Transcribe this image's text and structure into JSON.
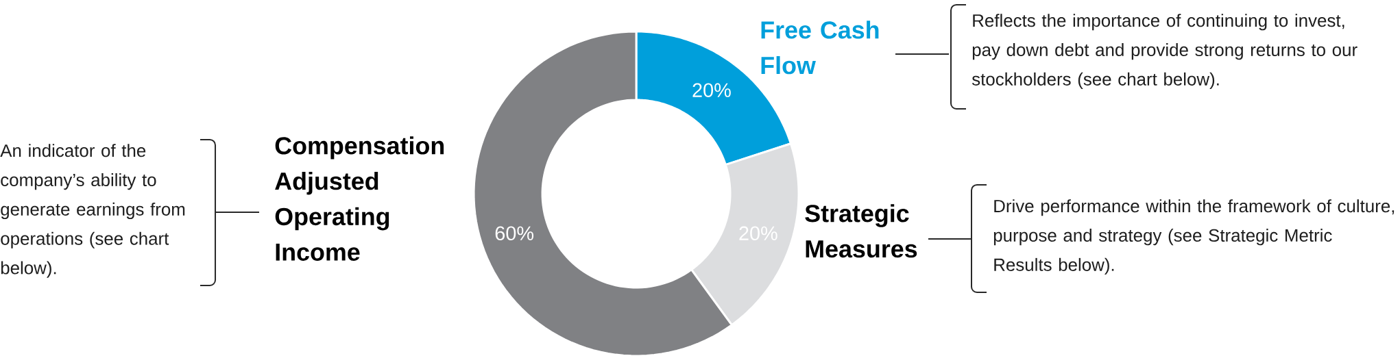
{
  "chart_data": {
    "type": "donut",
    "categories": [
      "Free Cash Flow",
      "Strategic Measures",
      "Compensation Adjusted Operating Income"
    ],
    "values": [
      20,
      20,
      60
    ],
    "colors": [
      "#009fdb",
      "#dcdddf",
      "#808184"
    ],
    "value_labels": [
      "20%",
      "20%",
      "60%"
    ],
    "annotations": [
      "Reflects the importance of continuing to invest, pay down debt and provide strong returns to our stockholders (see chart below).",
      "Drive performance within the framework of culture, purpose and strategy (see Strategic Metric Results below).",
      "An indicator of the company’s ability to generate earnings from operations (see chart below)."
    ]
  }
}
